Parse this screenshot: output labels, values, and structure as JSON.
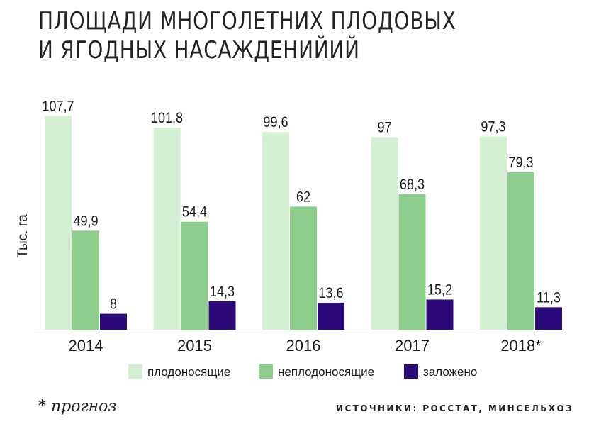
{
  "title_lines": [
    "ПЛОЩАДИ МНОГОЛЕТНИХ ПЛОДОВЫХ",
    "И ЯГОДНЫХ НАСАЖДЕНИЙИЙ"
  ],
  "footnote": "* прогноз",
  "source": "ИСТОЧНИКИ: РОССТАТ, МИНСЕЛЬХОЗ",
  "chart_data": {
    "type": "bar",
    "ylabel": "Тыс. га",
    "categories": [
      "2014",
      "2015",
      "2016",
      "2017",
      "2018*"
    ],
    "series": [
      {
        "name": "плодоносящие",
        "color": "#d4f0d2",
        "values": [
          107.7,
          101.8,
          99.6,
          97,
          97.3
        ],
        "labels": [
          "107,7",
          "101,8",
          "99,6",
          "97",
          "97,3"
        ]
      },
      {
        "name": "неплодоносящие",
        "color": "#8ece8c",
        "values": [
          49.9,
          54.4,
          62,
          68.3,
          79.3
        ],
        "labels": [
          "49,9",
          "54,4",
          "62",
          "68,3",
          "79,3"
        ]
      },
      {
        "name": "заложено",
        "color": "#2d0a7a",
        "values": [
          8,
          14.3,
          13.6,
          15.2,
          11.3
        ],
        "labels": [
          "8",
          "14,3",
          "13,6",
          "15,2",
          "11,3"
        ]
      }
    ],
    "ylim": [
      0,
      110
    ],
    "grid": false,
    "legend": "bottom"
  }
}
